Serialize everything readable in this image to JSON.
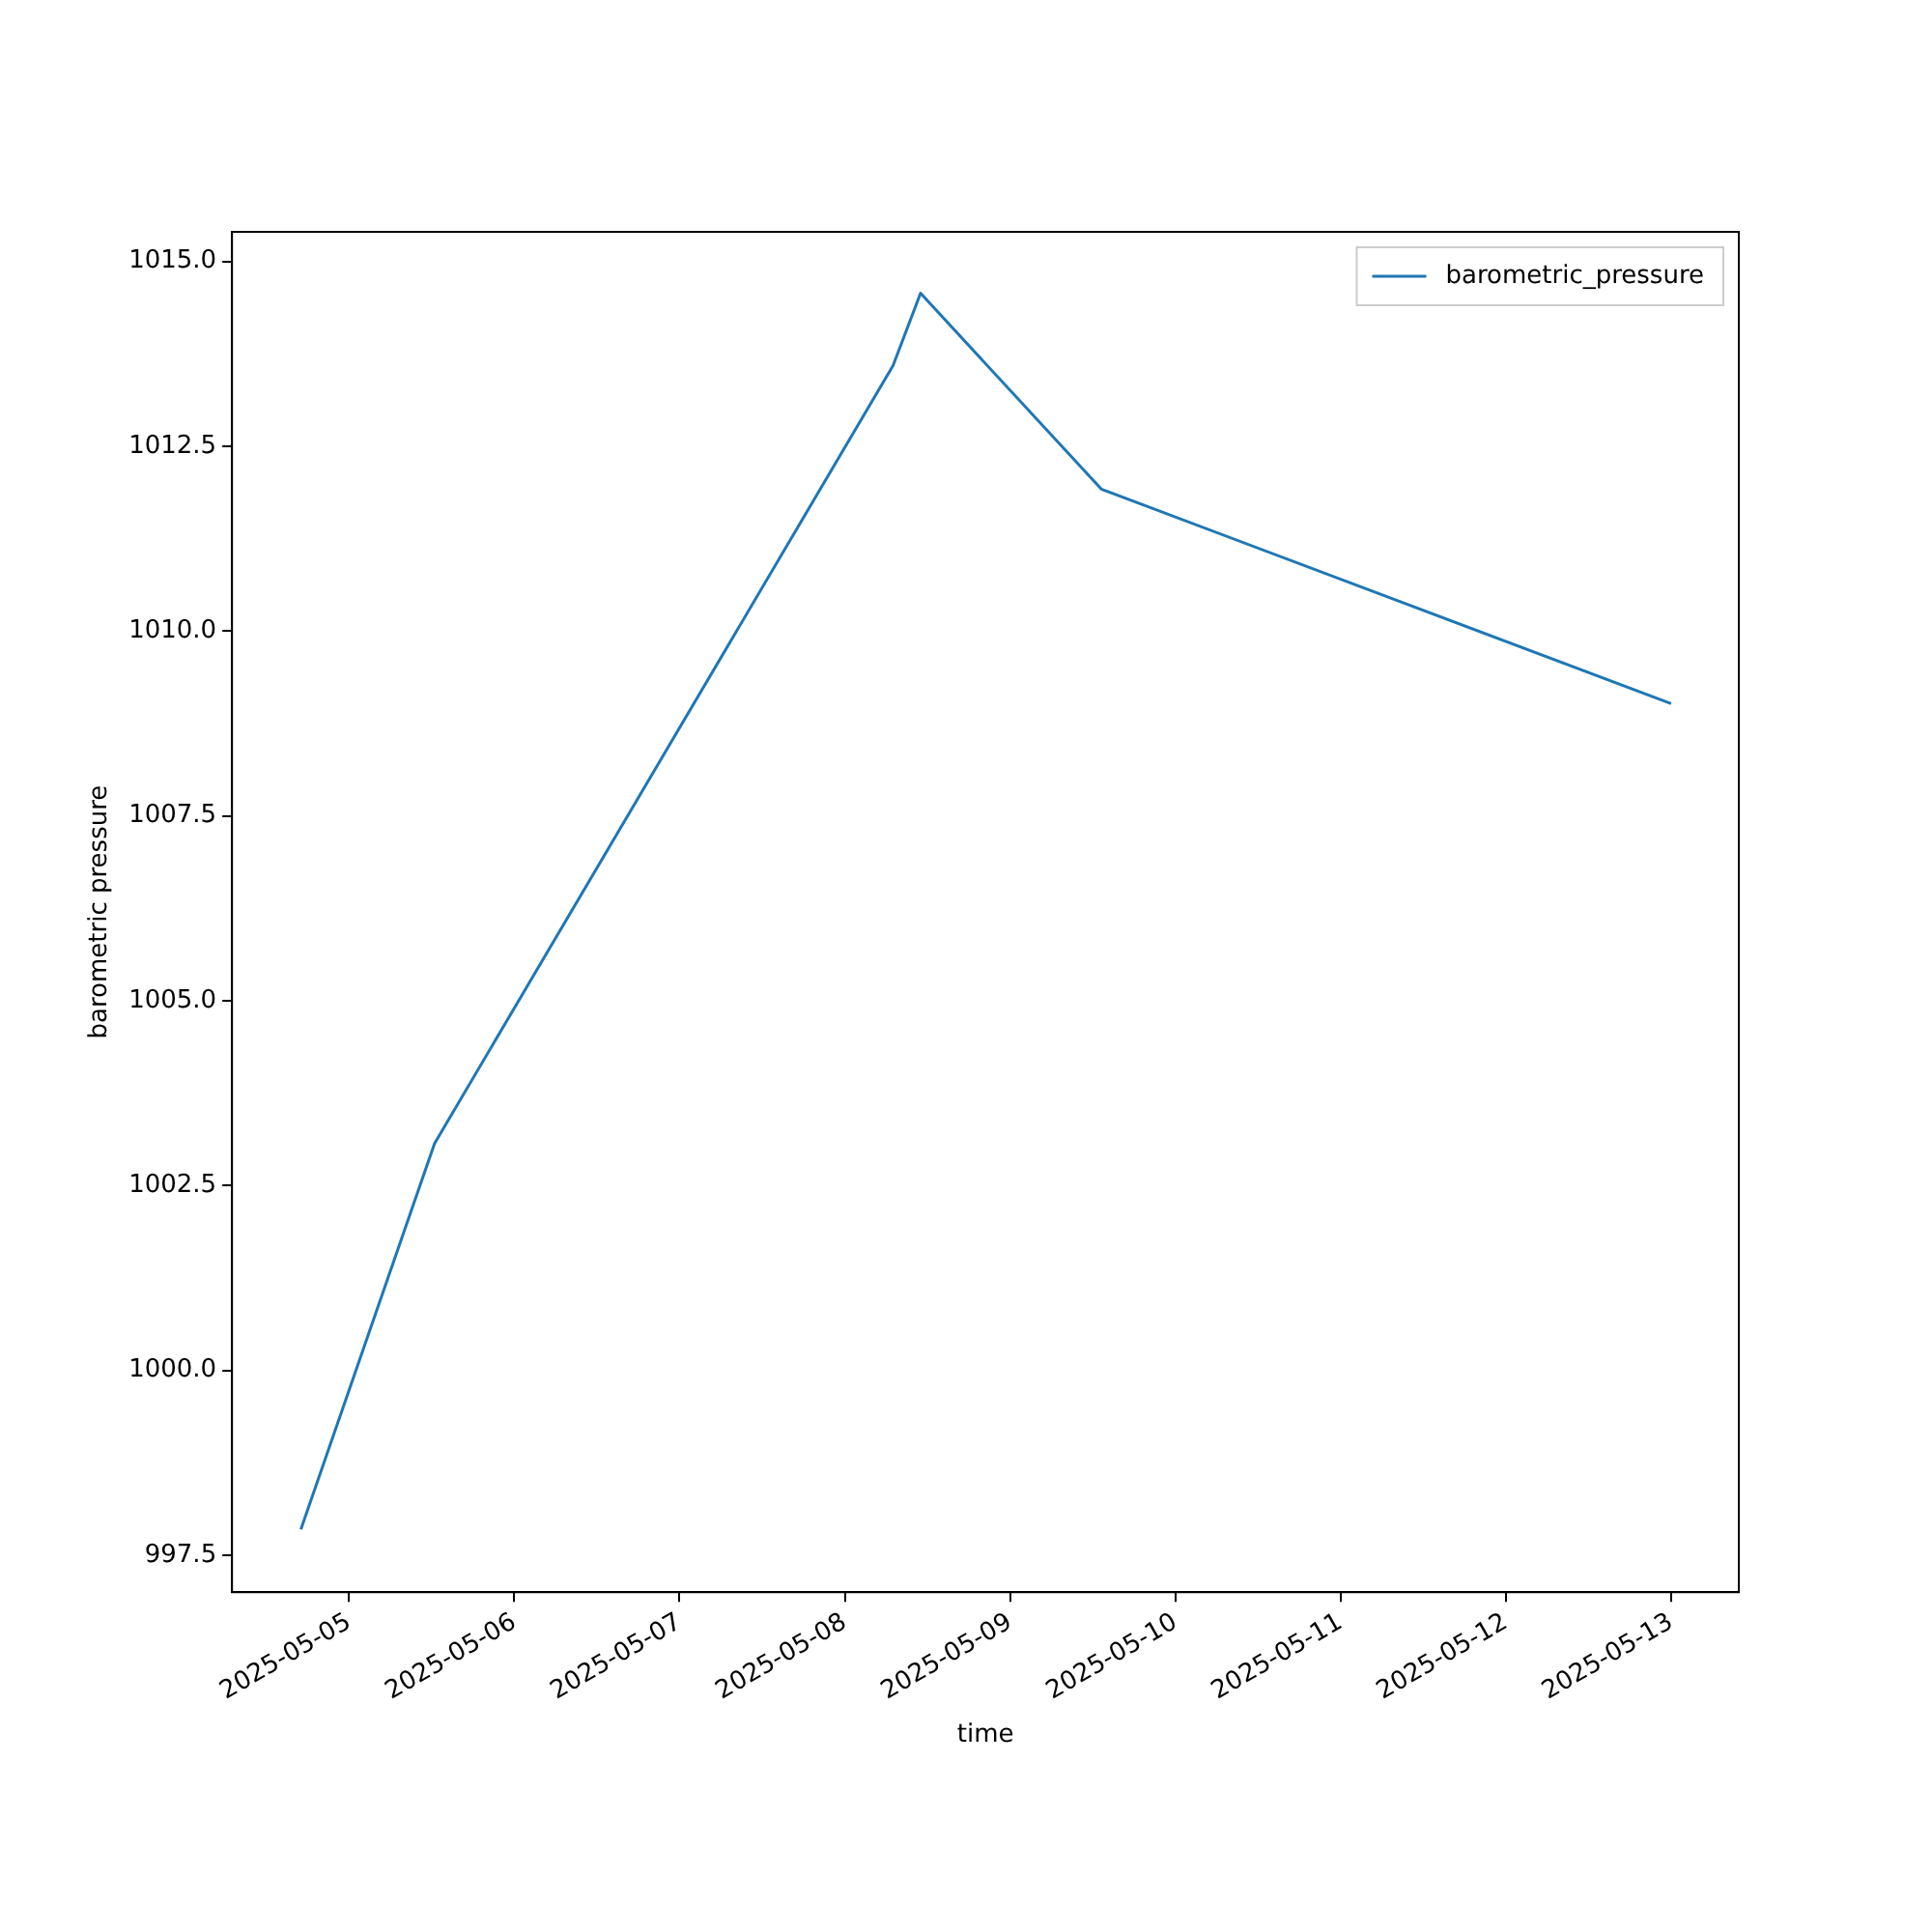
{
  "chart_data": {
    "type": "line",
    "xlabel": "time",
    "ylabel": "barometric pressure",
    "x": [
      "2025-05-04T17:00",
      "2025-05-05T12:25",
      "2025-05-08T07:00",
      "2025-05-08T11:00",
      "2025-05-09T13:15",
      "2025-05-13T00:00"
    ],
    "series": [
      {
        "name": "barometric_pressure",
        "color": "#1f77b4",
        "values": [
          997.85,
          1003.07,
          1013.59,
          1014.57,
          1011.92,
          1009.02
        ]
      }
    ],
    "xlim": [
      "2025-05-04T07:00",
      "2025-05-13T09:50"
    ],
    "xticks": [
      "2025-05-05",
      "2025-05-06",
      "2025-05-07",
      "2025-05-08",
      "2025-05-09",
      "2025-05-10",
      "2025-05-11",
      "2025-05-12",
      "2025-05-13"
    ],
    "ylim": [
      997.0,
      1015.4
    ],
    "yticks": [
      997.5,
      {
        "value": 1000,
        "label": "1000.0"
      },
      1002.5,
      {
        "value": 1005,
        "label": "1005.0"
      },
      1007.5,
      {
        "value": 1010,
        "label": "1010.0"
      },
      1012.5,
      {
        "value": 1015,
        "label": "1015.0"
      }
    ],
    "grid": false,
    "legend": "top right",
    "marker": "none",
    "line_style": "solid"
  }
}
